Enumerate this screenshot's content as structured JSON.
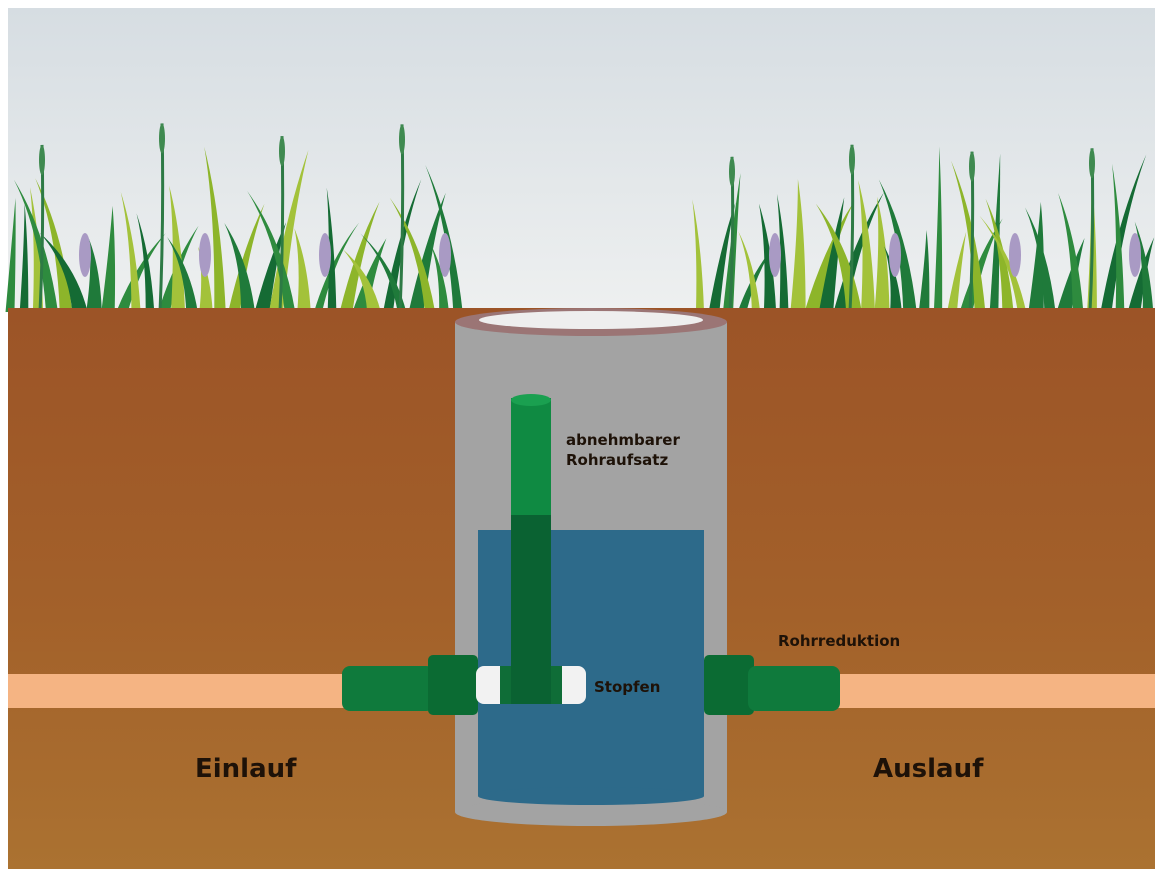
{
  "labels": {
    "rohraufsatz": [
      "abnehmbarer",
      "Rohraufsatz"
    ],
    "stopfen": "Stopfen",
    "rohrreduktion": "Rohrreduktion",
    "einlauf": "Einlauf",
    "auslauf": "Auslauf"
  }
}
